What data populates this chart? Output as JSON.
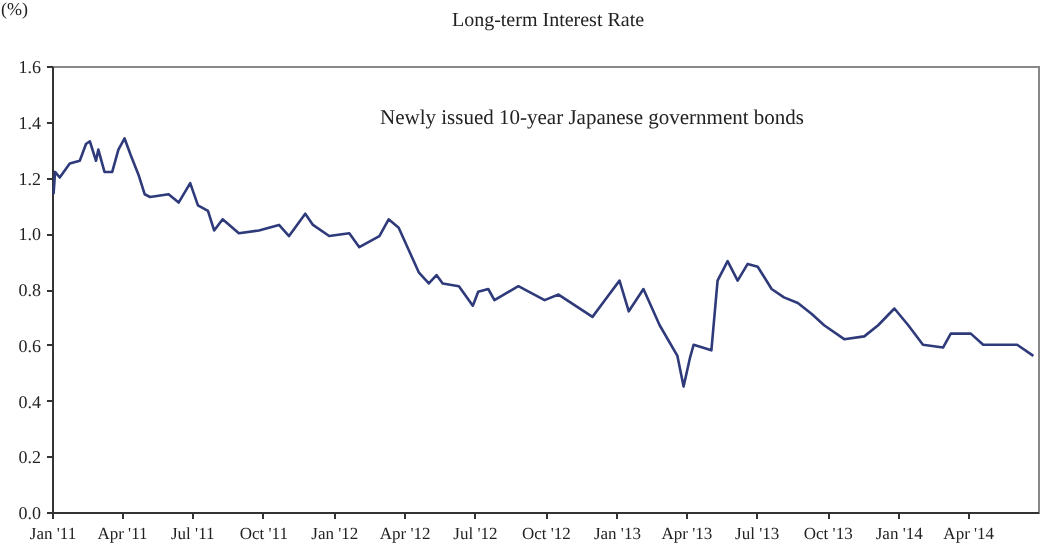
{
  "chart_data": {
    "type": "line",
    "title": "Long-term Interest Rate",
    "ylabel": "(%)",
    "annotations": [
      "Newly issued 10-year Japanese government bonds"
    ],
    "x": [
      "2011-01-03",
      "2011-01-05",
      "2011-01-11",
      "2011-01-24",
      "2011-02-06",
      "2011-02-14",
      "2011-02-19",
      "2011-02-27",
      "2011-03-02",
      "2011-03-10",
      "2011-03-20",
      "2011-03-28",
      "2011-04-05",
      "2011-04-13",
      "2011-04-23",
      "2011-05-01",
      "2011-05-08",
      "2011-06-01",
      "2011-06-14",
      "2011-06-29",
      "2011-07-09",
      "2011-07-22",
      "2011-07-30",
      "2011-08-10",
      "2011-08-31",
      "2011-09-26",
      "2011-10-22",
      "2011-11-04",
      "2011-11-25",
      "2011-12-05",
      "2011-12-26",
      "2012-01-21",
      "2012-02-03",
      "2012-02-29",
      "2012-03-12",
      "2012-03-25",
      "2012-04-07",
      "2012-04-20",
      "2012-05-03",
      "2012-05-13",
      "2012-05-21",
      "2012-06-11",
      "2012-06-29",
      "2012-07-06",
      "2012-07-19",
      "2012-07-27",
      "2012-08-27",
      "2012-09-30",
      "2012-10-18",
      "2012-12-01",
      "2012-12-17",
      "2013-01-05",
      "2013-01-17",
      "2013-02-05",
      "2013-02-26",
      "2013-03-21",
      "2013-03-29",
      "2013-04-06",
      "2013-04-11",
      "2013-05-04",
      "2013-05-12",
      "2013-05-25",
      "2013-06-07",
      "2013-06-20",
      "2013-07-03",
      "2013-07-21",
      "2013-08-06",
      "2013-08-24",
      "2013-09-11",
      "2013-09-27",
      "2013-10-23",
      "2013-11-18",
      "2013-12-06",
      "2013-12-27",
      "2014-01-14",
      "2014-02-02",
      "2014-02-28",
      "2014-03-10",
      "2014-04-05",
      "2014-04-21",
      "2014-05-17",
      "2014-06-04",
      "2014-06-25"
    ],
    "series": [
      {
        "color": "#2e3a7a",
        "values": [
          1.14,
          1.22,
          1.2,
          1.25,
          1.26,
          1.32,
          1.33,
          1.26,
          1.3,
          1.22,
          1.22,
          1.3,
          1.34,
          1.28,
          1.21,
          1.14,
          1.13,
          1.14,
          1.11,
          1.18,
          1.1,
          1.08,
          1.01,
          1.05,
          1.0,
          1.01,
          1.03,
          0.99,
          1.07,
          1.03,
          0.99,
          1.0,
          0.95,
          0.99,
          1.05,
          1.02,
          0.94,
          0.86,
          0.82,
          0.85,
          0.82,
          0.81,
          0.74,
          0.79,
          0.8,
          0.76,
          0.81,
          0.76,
          0.78,
          0.7,
          0.76,
          0.83,
          0.72,
          0.8,
          0.67,
          0.56,
          0.45,
          0.55,
          0.6,
          0.58,
          0.83,
          0.9,
          0.83,
          0.89,
          0.88,
          0.8,
          0.77,
          0.75,
          0.71,
          0.67,
          0.62,
          0.63,
          0.67,
          0.73,
          0.67,
          0.6,
          0.59,
          0.64,
          0.64,
          0.6,
          0.6,
          0.6,
          0.56
        ]
      }
    ],
    "xlim": [
      "2011-01-01",
      "2014-07-01"
    ],
    "xticks": [
      {
        "value": "2011-01-01",
        "label": "Jan '11"
      },
      {
        "value": "2011-04-01",
        "label": "Apr '11"
      },
      {
        "value": "2011-07-01",
        "label": "Jul '11"
      },
      {
        "value": "2011-10-01",
        "label": "Oct '11"
      },
      {
        "value": "2012-01-01",
        "label": "Jan '12"
      },
      {
        "value": "2012-04-01",
        "label": "Apr '12"
      },
      {
        "value": "2012-07-01",
        "label": "Jul '12"
      },
      {
        "value": "2012-10-01",
        "label": "Oct '12"
      },
      {
        "value": "2013-01-01",
        "label": "Jan '13"
      },
      {
        "value": "2013-04-01",
        "label": "Apr '13"
      },
      {
        "value": "2013-07-01",
        "label": "Jul '13"
      },
      {
        "value": "2013-10-01",
        "label": "Oct '13"
      },
      {
        "value": "2014-01-01",
        "label": "Jan '14"
      },
      {
        "value": "2014-04-01",
        "label": "Apr '14"
      }
    ],
    "ylim": [
      0,
      1.6
    ],
    "yticks": [
      {
        "value": 0,
        "label": "0.0"
      },
      {
        "value": 0.2,
        "label": "0.2"
      },
      {
        "value": 0.4,
        "label": "0.4"
      },
      {
        "value": 0.6,
        "label": "0.6"
      },
      {
        "value": 0.8,
        "label": "0.8"
      },
      {
        "value": 1.0,
        "label": "1.0"
      },
      {
        "value": 1.2,
        "label": "1.2"
      },
      {
        "value": 1.4,
        "label": "1.4"
      },
      {
        "value": 1.6,
        "label": "1.6"
      }
    ],
    "grid": false
  }
}
